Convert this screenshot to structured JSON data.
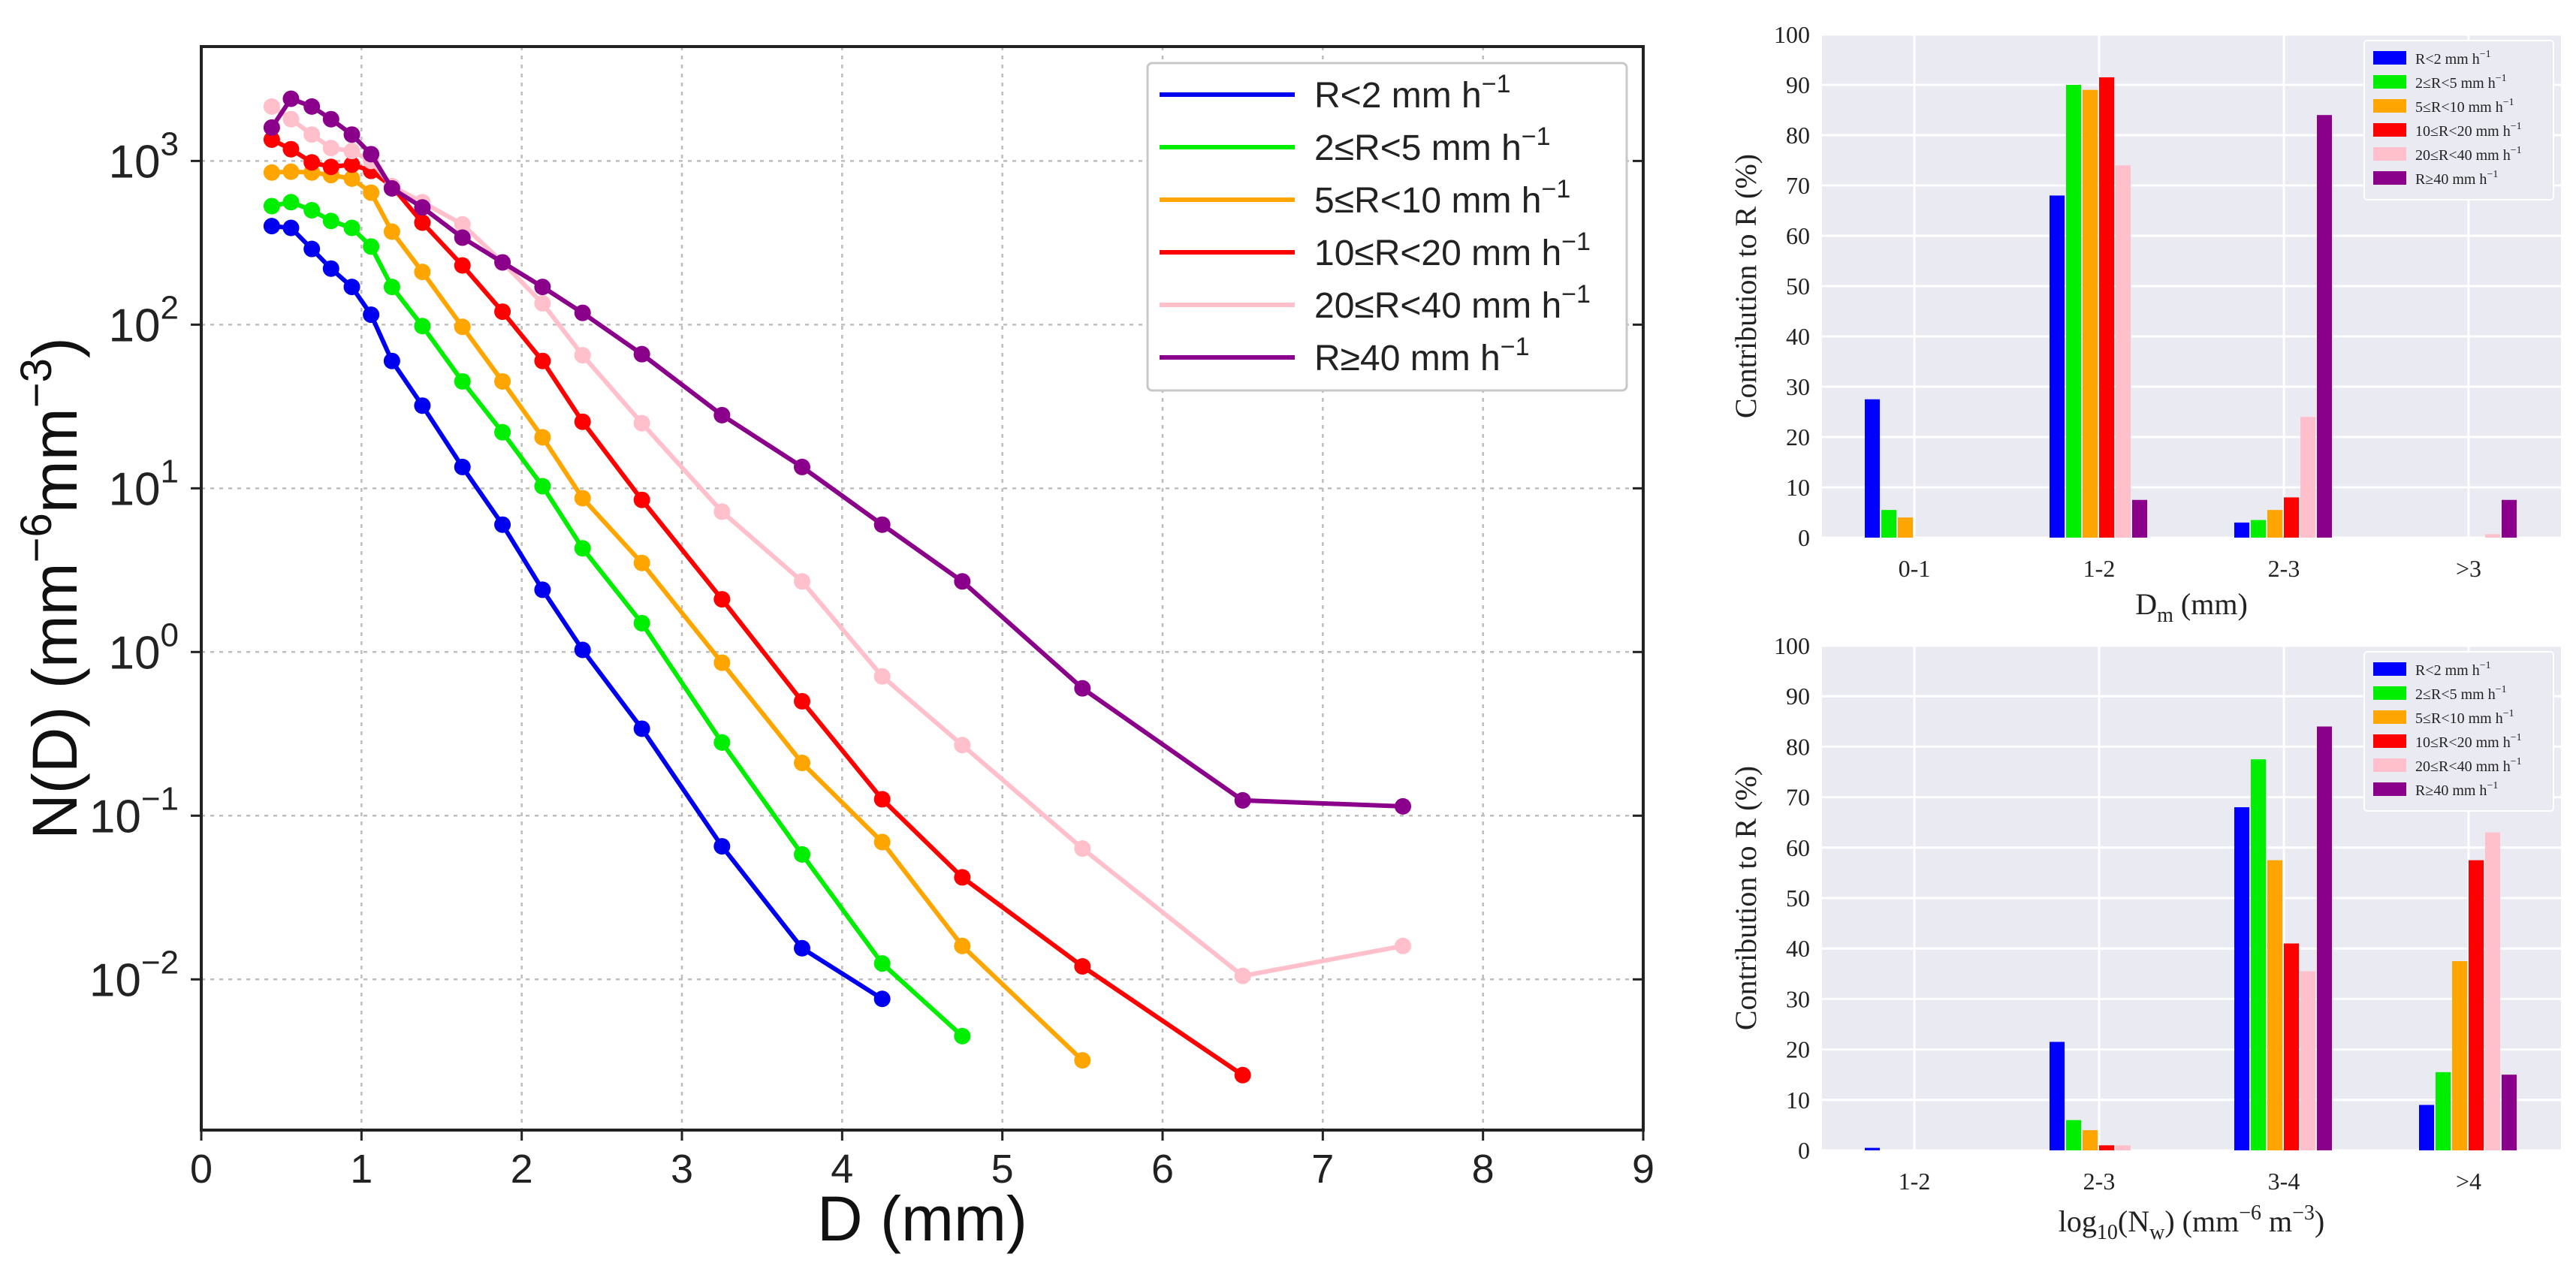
{
  "chart_data": [
    {
      "id": "left",
      "type": "line",
      "yscale": "log",
      "xlabel": "D  (mm)",
      "ylabel": "N(D)  (mm⁻⁶mm⁻³)",
      "xlim": [
        0,
        9
      ],
      "ylim": [
        0.0012,
        5000
      ],
      "xticks": [
        0,
        1,
        2,
        3,
        4,
        5,
        6,
        7,
        8,
        9
      ],
      "yticks": [
        {
          "value": 1000,
          "base": "10",
          "exp": "3"
        },
        {
          "value": 100,
          "base": "10",
          "exp": "2"
        },
        {
          "value": 10,
          "base": "10",
          "exp": "1"
        },
        {
          "value": 1,
          "base": "10",
          "exp": "0"
        },
        {
          "value": 0.1,
          "base": "10",
          "exp": "−1"
        },
        {
          "value": 0.01,
          "base": "10",
          "exp": "−2"
        }
      ],
      "series": [
        {
          "name": "R<2   mm h⁻¹",
          "color": "#0000ee",
          "x": [
            0.44,
            0.56,
            0.69,
            0.81,
            0.94,
            1.06,
            1.19,
            1.38,
            1.63,
            1.88,
            2.13,
            2.38,
            2.75,
            3.25,
            3.75,
            4.25
          ],
          "y": [
            400,
            390,
            290,
            220,
            170,
            115,
            60,
            32,
            13.5,
            6,
            2.4,
            1.03,
            0.34,
            0.065,
            0.0155,
            0.0076
          ]
        },
        {
          "name": "2≤R<5   mm h⁻¹",
          "color": "#00ee00",
          "x": [
            0.44,
            0.56,
            0.69,
            0.81,
            0.94,
            1.06,
            1.19,
            1.38,
            1.63,
            1.88,
            2.13,
            2.38,
            2.75,
            3.25,
            3.75,
            4.25,
            4.75
          ],
          "y": [
            530,
            560,
            500,
            430,
            390,
            300,
            170,
            98,
            45,
            22,
            10.3,
            4.3,
            1.5,
            0.28,
            0.058,
            0.0125,
            0.0045
          ]
        },
        {
          "name": "5≤R<10 mm h⁻¹",
          "color": "#ffa500",
          "x": [
            0.44,
            0.56,
            0.69,
            0.81,
            0.94,
            1.06,
            1.19,
            1.38,
            1.63,
            1.88,
            2.13,
            2.38,
            2.75,
            3.25,
            3.75,
            4.25,
            4.75,
            5.5
          ],
          "y": [
            850,
            860,
            850,
            820,
            780,
            640,
            370,
            210,
            97,
            45,
            20.5,
            8.7,
            3.5,
            0.86,
            0.21,
            0.069,
            0.016,
            0.0032
          ]
        },
        {
          "name": "10≤R<20 mm h⁻¹",
          "color": "#ff0000",
          "x": [
            0.44,
            0.56,
            0.69,
            0.81,
            0.94,
            1.06,
            1.19,
            1.38,
            1.63,
            1.88,
            2.13,
            2.38,
            2.75,
            3.25,
            3.75,
            4.25,
            4.75,
            5.5,
            6.5
          ],
          "y": [
            1350,
            1180,
            980,
            920,
            950,
            870,
            700,
            420,
            230,
            120,
            60,
            25.5,
            8.5,
            2.1,
            0.5,
            0.126,
            0.042,
            0.012,
            0.0026
          ]
        },
        {
          "name": "20≤R<40 mm h⁻¹",
          "color": "#ffc0cb",
          "x": [
            0.44,
            0.56,
            0.69,
            0.81,
            0.94,
            1.06,
            1.19,
            1.38,
            1.63,
            1.88,
            2.13,
            2.38,
            2.75,
            3.25,
            3.75,
            4.25,
            4.75,
            5.5,
            6.5,
            7.5
          ],
          "y": [
            2150,
            1800,
            1450,
            1200,
            1150,
            1000,
            700,
            560,
            410,
            240,
            135,
            65,
            25,
            7.2,
            2.7,
            0.71,
            0.27,
            0.063,
            0.0105,
            0.016
          ]
        },
        {
          "name": "R≥40 mm h⁻¹",
          "color": "#8b008b",
          "x": [
            0.44,
            0.56,
            0.69,
            0.81,
            0.94,
            1.06,
            1.19,
            1.38,
            1.63,
            1.88,
            2.13,
            2.38,
            2.75,
            3.25,
            3.75,
            4.25,
            4.75,
            5.5,
            6.5,
            7.5
          ],
          "y": [
            1600,
            2400,
            2150,
            1800,
            1450,
            1100,
            680,
            520,
            340,
            240,
            170,
            118,
            66,
            28,
            13.5,
            6,
            2.7,
            0.6,
            0.124,
            0.114
          ]
        }
      ],
      "legend": "top-right",
      "grid": true
    },
    {
      "id": "top-right",
      "type": "bar",
      "xlabel": "D",
      "xlabel_sub": "m",
      "xlabel_rest": "  (mm)",
      "ylabel": "Contribution to R (%)",
      "ylim": [
        0,
        100
      ],
      "yticks": [
        0,
        10,
        20,
        30,
        40,
        50,
        60,
        70,
        80,
        90,
        100
      ],
      "categories": [
        "0-1",
        "1-2",
        "2-3",
        ">3"
      ],
      "series": [
        {
          "name": "R<2 mm h⁻¹",
          "color": "#0000ff",
          "values": [
            27.5,
            68,
            3,
            0
          ]
        },
        {
          "name": "2≤R<5 mm h⁻¹",
          "color": "#00ee00",
          "values": [
            5.5,
            90,
            3.5,
            0
          ]
        },
        {
          "name": "5≤R<10 mm h⁻¹",
          "color": "#ffa500",
          "values": [
            4,
            89,
            5.5,
            0
          ]
        },
        {
          "name": "10≤R<20 mm h⁻¹",
          "color": "#ff0000",
          "values": [
            0,
            91.5,
            8,
            0
          ]
        },
        {
          "name": "20≤R<40 mm h⁻¹",
          "color": "#ffc0cb",
          "values": [
            0,
            74,
            24,
            0.7
          ]
        },
        {
          "name": "R≥40 mm h⁻¹",
          "color": "#8b008b",
          "values": [
            0,
            7.5,
            84,
            7.5
          ]
        }
      ],
      "legend": "top-right",
      "grid": true
    },
    {
      "id": "bottom-right",
      "type": "bar",
      "xlabel": "log",
      "xlabel_sub": "10",
      "xlabel_rest": "(N",
      "xlabel_sub2": "w",
      "xlabel_rest2": ")  (mm",
      "xlabel_sup": "−6",
      "xlabel_rest3": " m",
      "xlabel_sup2": "−3",
      "xlabel_rest4": ")",
      "ylabel": "Contribution to R (%)",
      "ylim": [
        0,
        100
      ],
      "yticks": [
        0,
        10,
        20,
        30,
        40,
        50,
        60,
        70,
        80,
        90,
        100
      ],
      "categories": [
        "1-2",
        "2-3",
        "3-4",
        ">4"
      ],
      "series": [
        {
          "name": "R<2 mm h⁻¹",
          "color": "#0000ff",
          "values": [
            0.5,
            21.5,
            68,
            9
          ]
        },
        {
          "name": "2≤R<5 mm h⁻¹",
          "color": "#00ee00",
          "values": [
            0,
            6,
            77.5,
            15.5
          ]
        },
        {
          "name": "5≤R<10 mm h⁻¹",
          "color": "#ffa500",
          "values": [
            0,
            4,
            57.5,
            37.5
          ]
        },
        {
          "name": "10≤R<20 mm h⁻¹",
          "color": "#ff0000",
          "values": [
            0,
            1,
            41,
            57.5
          ]
        },
        {
          "name": "20≤R<40 mm h⁻¹",
          "color": "#ffc0cb",
          "values": [
            0,
            1,
            35.5,
            63
          ]
        },
        {
          "name": "R≥40 mm h⁻¹",
          "color": "#8b008b",
          "values": [
            0,
            0,
            84,
            15
          ]
        }
      ],
      "legend": "top-right",
      "grid": true
    }
  ]
}
